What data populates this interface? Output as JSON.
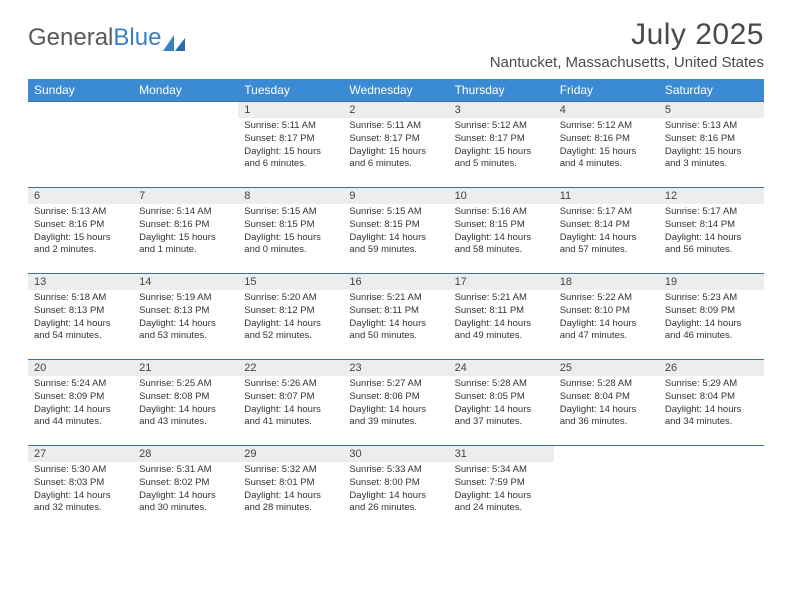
{
  "logo": {
    "text_a": "General",
    "text_b": "Blue"
  },
  "title": "July 2025",
  "location": "Nantucket, Massachusetts, United States",
  "colors": {
    "header_bg": "#3b8bd4",
    "header_text": "#ffffff",
    "daynum_bg": "#eceeee",
    "row_border": "#3b6fa0",
    "body_text": "#333333",
    "title_text": "#4a4a4a",
    "logo_gray": "#5a5a5a",
    "logo_blue": "#3b7fc4"
  },
  "typography": {
    "title_fontsize": 30,
    "location_fontsize": 15,
    "weekday_fontsize": 12,
    "daynum_fontsize": 11,
    "body_fontsize": 9.5
  },
  "weekdays": [
    "Sunday",
    "Monday",
    "Tuesday",
    "Wednesday",
    "Thursday",
    "Friday",
    "Saturday"
  ],
  "weeks": [
    [
      null,
      null,
      {
        "n": "1",
        "sunrise": "5:11 AM",
        "sunset": "8:17 PM",
        "daylight": "15 hours and 6 minutes."
      },
      {
        "n": "2",
        "sunrise": "5:11 AM",
        "sunset": "8:17 PM",
        "daylight": "15 hours and 6 minutes."
      },
      {
        "n": "3",
        "sunrise": "5:12 AM",
        "sunset": "8:17 PM",
        "daylight": "15 hours and 5 minutes."
      },
      {
        "n": "4",
        "sunrise": "5:12 AM",
        "sunset": "8:16 PM",
        "daylight": "15 hours and 4 minutes."
      },
      {
        "n": "5",
        "sunrise": "5:13 AM",
        "sunset": "8:16 PM",
        "daylight": "15 hours and 3 minutes."
      }
    ],
    [
      {
        "n": "6",
        "sunrise": "5:13 AM",
        "sunset": "8:16 PM",
        "daylight": "15 hours and 2 minutes."
      },
      {
        "n": "7",
        "sunrise": "5:14 AM",
        "sunset": "8:16 PM",
        "daylight": "15 hours and 1 minute."
      },
      {
        "n": "8",
        "sunrise": "5:15 AM",
        "sunset": "8:15 PM",
        "daylight": "15 hours and 0 minutes."
      },
      {
        "n": "9",
        "sunrise": "5:15 AM",
        "sunset": "8:15 PM",
        "daylight": "14 hours and 59 minutes."
      },
      {
        "n": "10",
        "sunrise": "5:16 AM",
        "sunset": "8:15 PM",
        "daylight": "14 hours and 58 minutes."
      },
      {
        "n": "11",
        "sunrise": "5:17 AM",
        "sunset": "8:14 PM",
        "daylight": "14 hours and 57 minutes."
      },
      {
        "n": "12",
        "sunrise": "5:17 AM",
        "sunset": "8:14 PM",
        "daylight": "14 hours and 56 minutes."
      }
    ],
    [
      {
        "n": "13",
        "sunrise": "5:18 AM",
        "sunset": "8:13 PM",
        "daylight": "14 hours and 54 minutes."
      },
      {
        "n": "14",
        "sunrise": "5:19 AM",
        "sunset": "8:13 PM",
        "daylight": "14 hours and 53 minutes."
      },
      {
        "n": "15",
        "sunrise": "5:20 AM",
        "sunset": "8:12 PM",
        "daylight": "14 hours and 52 minutes."
      },
      {
        "n": "16",
        "sunrise": "5:21 AM",
        "sunset": "8:11 PM",
        "daylight": "14 hours and 50 minutes."
      },
      {
        "n": "17",
        "sunrise": "5:21 AM",
        "sunset": "8:11 PM",
        "daylight": "14 hours and 49 minutes."
      },
      {
        "n": "18",
        "sunrise": "5:22 AM",
        "sunset": "8:10 PM",
        "daylight": "14 hours and 47 minutes."
      },
      {
        "n": "19",
        "sunrise": "5:23 AM",
        "sunset": "8:09 PM",
        "daylight": "14 hours and 46 minutes."
      }
    ],
    [
      {
        "n": "20",
        "sunrise": "5:24 AM",
        "sunset": "8:09 PM",
        "daylight": "14 hours and 44 minutes."
      },
      {
        "n": "21",
        "sunrise": "5:25 AM",
        "sunset": "8:08 PM",
        "daylight": "14 hours and 43 minutes."
      },
      {
        "n": "22",
        "sunrise": "5:26 AM",
        "sunset": "8:07 PM",
        "daylight": "14 hours and 41 minutes."
      },
      {
        "n": "23",
        "sunrise": "5:27 AM",
        "sunset": "8:06 PM",
        "daylight": "14 hours and 39 minutes."
      },
      {
        "n": "24",
        "sunrise": "5:28 AM",
        "sunset": "8:05 PM",
        "daylight": "14 hours and 37 minutes."
      },
      {
        "n": "25",
        "sunrise": "5:28 AM",
        "sunset": "8:04 PM",
        "daylight": "14 hours and 36 minutes."
      },
      {
        "n": "26",
        "sunrise": "5:29 AM",
        "sunset": "8:04 PM",
        "daylight": "14 hours and 34 minutes."
      }
    ],
    [
      {
        "n": "27",
        "sunrise": "5:30 AM",
        "sunset": "8:03 PM",
        "daylight": "14 hours and 32 minutes."
      },
      {
        "n": "28",
        "sunrise": "5:31 AM",
        "sunset": "8:02 PM",
        "daylight": "14 hours and 30 minutes."
      },
      {
        "n": "29",
        "sunrise": "5:32 AM",
        "sunset": "8:01 PM",
        "daylight": "14 hours and 28 minutes."
      },
      {
        "n": "30",
        "sunrise": "5:33 AM",
        "sunset": "8:00 PM",
        "daylight": "14 hours and 26 minutes."
      },
      {
        "n": "31",
        "sunrise": "5:34 AM",
        "sunset": "7:59 PM",
        "daylight": "14 hours and 24 minutes."
      },
      null,
      null
    ]
  ],
  "labels": {
    "sunrise": "Sunrise:",
    "sunset": "Sunset:",
    "daylight": "Daylight:"
  }
}
